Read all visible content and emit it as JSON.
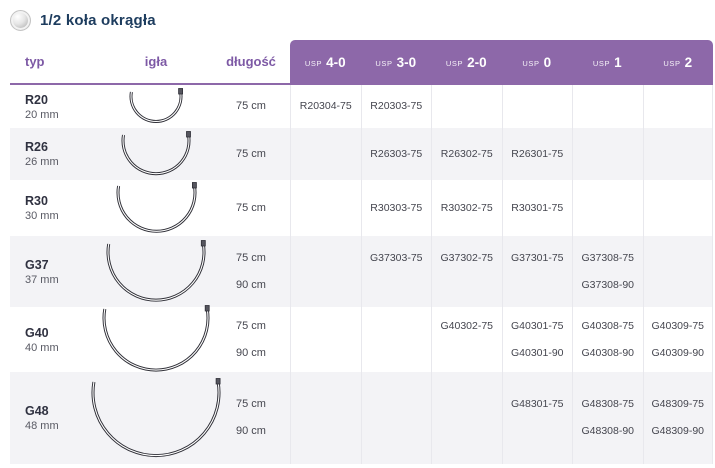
{
  "section": {
    "title": "1/2 koła okrągła"
  },
  "table": {
    "left_headers": [
      "typ",
      "igła",
      "długość"
    ],
    "usp_prefix": "USP",
    "usp_sizes": [
      "4-0",
      "3-0",
      "2-0",
      "0",
      "1",
      "2"
    ],
    "rows": [
      {
        "type_code": "R20",
        "needle_size_label": "20 mm",
        "needle_mm": 20,
        "lengths": [
          "75 cm"
        ],
        "usp_cells": [
          [
            "R20304-75"
          ],
          [
            "R20303-75"
          ],
          [],
          [],
          [],
          []
        ]
      },
      {
        "type_code": "R26",
        "needle_size_label": "26 mm",
        "needle_mm": 26,
        "lengths": [
          "75 cm"
        ],
        "usp_cells": [
          [],
          [
            "R26303-75"
          ],
          [
            "R26302-75"
          ],
          [
            "R26301-75"
          ],
          [],
          []
        ]
      },
      {
        "type_code": "R30",
        "needle_size_label": "30 mm",
        "needle_mm": 30,
        "lengths": [
          "75 cm"
        ],
        "usp_cells": [
          [],
          [
            "R30303-75"
          ],
          [
            "R30302-75"
          ],
          [
            "R30301-75"
          ],
          [],
          []
        ]
      },
      {
        "type_code": "G37",
        "needle_size_label": "37 mm",
        "needle_mm": 37,
        "lengths": [
          "75 cm",
          "90 cm"
        ],
        "usp_cells": [
          [],
          [
            "G37303-75"
          ],
          [
            "G37302-75"
          ],
          [
            "G37301-75"
          ],
          [
            "G37308-75",
            "G37308-90"
          ],
          []
        ]
      },
      {
        "type_code": "G40",
        "needle_size_label": "40 mm",
        "needle_mm": 40,
        "lengths": [
          "75 cm",
          "90 cm"
        ],
        "usp_cells": [
          [],
          [],
          [
            "G40302-75"
          ],
          [
            "G40301-75",
            "G40301-90"
          ],
          [
            "G40308-75",
            "G40308-90"
          ],
          [
            "G40309-75",
            "G40309-90"
          ]
        ]
      },
      {
        "type_code": "G48",
        "needle_size_label": "48 mm",
        "needle_mm": 48,
        "lengths": [
          "75 cm",
          "90 cm"
        ],
        "usp_cells": [
          [],
          [],
          [],
          [
            "G48301-75"
          ],
          [
            "G48308-75",
            "G48308-90"
          ],
          [
            "G48309-75",
            "G48309-90"
          ]
        ]
      }
    ]
  },
  "colors": {
    "accent_purple": "#8d68a9",
    "header_text_purple": "#7d59a5",
    "title_navy": "#1d3c5e",
    "body_text": "#45464f",
    "row_stripe": "#f3f3f6",
    "needle_stroke": "#2e2e36"
  }
}
